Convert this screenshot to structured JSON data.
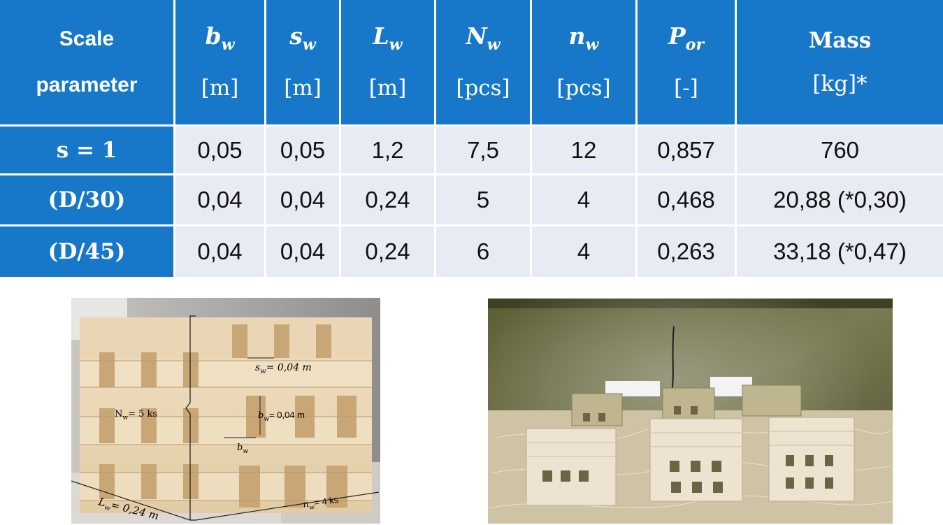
{
  "table": {
    "headers": [
      {
        "id": "scale",
        "line1": "Scale",
        "line2": "parameter"
      },
      {
        "id": "bw",
        "sym": "b",
        "sub": "w",
        "unit": "[m]"
      },
      {
        "id": "sw",
        "sym": "s",
        "sub": "w",
        "unit": "[m]"
      },
      {
        "id": "lw",
        "sym": "L",
        "sub": "w",
        "unit": "[m]"
      },
      {
        "id": "Nw",
        "sym": "N",
        "sub": "w",
        "unit": "[pcs]"
      },
      {
        "id": "nw",
        "sym": "n",
        "sub": "w",
        "unit": "[pcs]"
      },
      {
        "id": "por",
        "sym": "P",
        "sub": "or",
        "unit": "[-]"
      },
      {
        "id": "mass",
        "line1": "Mass",
        "unit": "[kg]*"
      }
    ],
    "rows": [
      {
        "label": "s = 1",
        "cells": [
          "0,05",
          "0,05",
          "1,2",
          "7,5",
          "12",
          "0,857",
          "760"
        ]
      },
      {
        "label": "(D/30)",
        "cells": [
          "0,04",
          "0,04",
          "0,24",
          "5",
          "4",
          "0,468",
          "20,88 (*0,30)"
        ]
      },
      {
        "label": "(D/45)",
        "cells": [
          "0,04",
          "0,04",
          "0,24",
          "6",
          "4",
          "0,263",
          "33,18 (*0,47)"
        ]
      }
    ]
  },
  "photo_left": {
    "annotations": {
      "sw": "sₐ = 0,04 m",
      "sw_sym": "s",
      "sw_sub": "w",
      "sw_val": "= 0,04 m",
      "bw_sym": "b",
      "bw_sub": "w",
      "bw_val": "= 0,04 m",
      "Nw_sym": "N",
      "Nw_sub": "w",
      "Nw_val": "= 5 ks",
      "bw2_sym": "b",
      "bw2_sub": "w",
      "Lw_sym": "L",
      "Lw_sub": "w",
      "Lw_val": "=   0,24 m",
      "nw_sym": "n",
      "nw_sub": "w",
      "nw_val": "= 4 ks"
    }
  },
  "colors": {
    "header_blue": "#1777c9",
    "cell_gray": "#e7ebf3"
  }
}
